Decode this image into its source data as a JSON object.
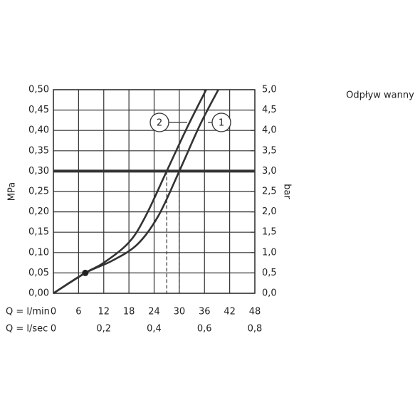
{
  "chart_data": {
    "type": "line",
    "legend_title": "Odpływ wanny",
    "ylabel": "MPa",
    "y2label": "bar",
    "xlabel": "Q = l/min",
    "x2label": "Q = l/sec",
    "xlim": [
      0,
      48
    ],
    "xticks": [
      0,
      6,
      12,
      18,
      24,
      30,
      36,
      42,
      48
    ],
    "x2lim": [
      0,
      0.8
    ],
    "x2ticks": [
      0,
      {
        "value": 0.2,
        "label": "0,2"
      },
      {
        "value": 0.4,
        "label": "0,4"
      },
      {
        "value": 0.6,
        "label": "0,6"
      },
      {
        "value": 0.8,
        "label": "0,8"
      }
    ],
    "ylim": [
      0,
      0.5
    ],
    "yticks": [
      {
        "value": 0,
        "label": "0,00"
      },
      {
        "value": 0.05,
        "label": "0,05"
      },
      {
        "value": 0.1,
        "label": "0,10"
      },
      {
        "value": 0.15,
        "label": "0,15"
      },
      {
        "value": 0.2,
        "label": "0,20"
      },
      {
        "value": 0.25,
        "label": "0,25"
      },
      {
        "value": 0.3,
        "label": "0,30"
      },
      {
        "value": 0.35,
        "label": "0,35"
      },
      {
        "value": 0.4,
        "label": "0,40"
      },
      {
        "value": 0.45,
        "label": "0,45"
      },
      {
        "value": 0.5,
        "label": "0,50"
      }
    ],
    "y2lim": [
      0,
      5
    ],
    "y2ticks": [
      {
        "value": 0,
        "label": "0,0"
      },
      {
        "value": 0.5,
        "label": "0,5"
      },
      {
        "value": 1,
        "label": "1,0"
      },
      {
        "value": 1.5,
        "label": "1,5"
      },
      {
        "value": 2,
        "label": "2,0"
      },
      {
        "value": 2.5,
        "label": "2,5"
      },
      {
        "value": 3,
        "label": "3,0"
      },
      {
        "value": 3.5,
        "label": "3,5"
      },
      {
        "value": 4,
        "label": "4,0"
      },
      {
        "value": 4.5,
        "label": "4,5"
      },
      {
        "value": 5,
        "label": "5,0"
      }
    ],
    "grid": true,
    "hline": 0.3,
    "vlines": [
      27,
      30
    ],
    "marker": {
      "x": 7.6,
      "y": 0.05
    },
    "series": [
      {
        "name": "1",
        "color": "#333333",
        "x": [
          0,
          7.6,
          14,
          20,
          25,
          30,
          35,
          39.3
        ],
        "values": [
          0,
          0.05,
          0.08,
          0.12,
          0.19,
          0.3,
          0.415,
          0.5
        ]
      },
      {
        "name": "2",
        "color": "#333333",
        "x": [
          0,
          7.6,
          12,
          18,
          22,
          27,
          32,
          36.4
        ],
        "values": [
          0,
          0.05,
          0.075,
          0.125,
          0.19,
          0.3,
          0.41,
          0.5
        ]
      }
    ]
  }
}
